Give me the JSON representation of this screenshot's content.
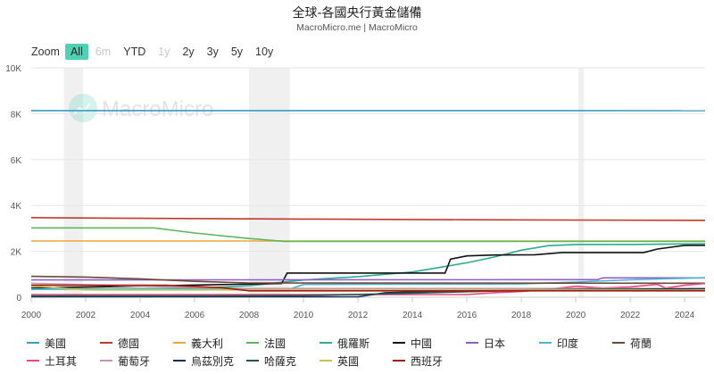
{
  "header": {
    "title": "全球-各國央行黃金儲備",
    "subtitle": "MacroMicro.me | MacroMicro"
  },
  "zoom": {
    "label": "Zoom",
    "buttons": [
      {
        "label": "All",
        "state": "active"
      },
      {
        "label": "6m",
        "state": "disabled"
      },
      {
        "label": "YTD",
        "state": "normal"
      },
      {
        "label": "1y",
        "state": "disabled"
      },
      {
        "label": "2y",
        "state": "normal"
      },
      {
        "label": "3y",
        "state": "normal"
      },
      {
        "label": "5y",
        "state": "normal"
      },
      {
        "label": "10y",
        "state": "normal"
      }
    ]
  },
  "watermark": "MacroMicro",
  "colors": {
    "accent": "#4fd1b5",
    "recession_band": "#f0f0f0",
    "grid": "#e6e6e6"
  },
  "chart_data": {
    "type": "line",
    "title": "全球-各國央行黃金儲備",
    "subtitle": "MacroMicro.me | MacroMicro",
    "xlabel": "",
    "ylabel": "",
    "x_ticks": [
      "2000",
      "2002",
      "2004",
      "2006",
      "2008",
      "2010",
      "2012",
      "2014",
      "2016",
      "2018",
      "2020",
      "2022",
      "2024"
    ],
    "y_ticks": [
      "0",
      "2K",
      "4K",
      "6K",
      "8K",
      "10K"
    ],
    "ylim": [
      0,
      10000
    ],
    "xlim": [
      2000,
      2024.75
    ],
    "grid": true,
    "legend_position": "bottom",
    "shaded_periods": [
      [
        2001.2,
        2001.9
      ],
      [
        2008.0,
        2009.5
      ],
      [
        2020.1,
        2020.3
      ]
    ],
    "series": [
      {
        "name": "美國",
        "color": "#3a9bc1",
        "points": [
          [
            2000,
            8137
          ],
          [
            2024.75,
            8133
          ]
        ]
      },
      {
        "name": "德國",
        "color": "#c0392b",
        "points": [
          [
            2000,
            3469
          ],
          [
            2004,
            3440
          ],
          [
            2010,
            3407
          ],
          [
            2016,
            3378
          ],
          [
            2024.75,
            3352
          ]
        ]
      },
      {
        "name": "義大利",
        "color": "#e9a93a",
        "points": [
          [
            2000,
            2452
          ],
          [
            2024.75,
            2452
          ]
        ]
      },
      {
        "name": "法國",
        "color": "#5cb85c",
        "points": [
          [
            2000,
            3025
          ],
          [
            2004.5,
            3025
          ],
          [
            2006,
            2800
          ],
          [
            2008,
            2560
          ],
          [
            2009.3,
            2435
          ],
          [
            2024.75,
            2437
          ]
        ]
      },
      {
        "name": "俄羅斯",
        "color": "#2bab96",
        "points": [
          [
            2000,
            343
          ],
          [
            2006,
            390
          ],
          [
            2008,
            500
          ],
          [
            2010,
            750
          ],
          [
            2012,
            900
          ],
          [
            2014,
            1100
          ],
          [
            2015,
            1300
          ],
          [
            2016,
            1500
          ],
          [
            2017,
            1750
          ],
          [
            2018,
            2050
          ],
          [
            2019,
            2250
          ],
          [
            2020,
            2300
          ],
          [
            2022,
            2300
          ],
          [
            2024.75,
            2335
          ]
        ]
      },
      {
        "name": "中國",
        "color": "#111111",
        "points": [
          [
            2000,
            395
          ],
          [
            2009.2,
            600
          ],
          [
            2009.4,
            1054
          ],
          [
            2015.2,
            1054
          ],
          [
            2015.4,
            1660
          ],
          [
            2016,
            1800
          ],
          [
            2017,
            1842
          ],
          [
            2018.5,
            1852
          ],
          [
            2019.5,
            1948
          ],
          [
            2022.5,
            1948
          ],
          [
            2023,
            2100
          ],
          [
            2024,
            2260
          ],
          [
            2024.75,
            2264
          ]
        ]
      },
      {
        "name": "日本",
        "color": "#8e5fc7",
        "points": [
          [
            2000,
            754
          ],
          [
            2020.8,
            765
          ],
          [
            2021,
            846
          ],
          [
            2024.75,
            846
          ]
        ]
      },
      {
        "name": "印度",
        "color": "#4ab5d6",
        "points": [
          [
            2000,
            358
          ],
          [
            2009.5,
            358
          ],
          [
            2010,
            558
          ],
          [
            2018,
            580
          ],
          [
            2020,
            660
          ],
          [
            2022,
            760
          ],
          [
            2024.75,
            854
          ]
        ]
      },
      {
        "name": "荷蘭",
        "color": "#6b4a3a",
        "points": [
          [
            2000,
            912
          ],
          [
            2002,
            880
          ],
          [
            2004,
            800
          ],
          [
            2006,
            694
          ],
          [
            2008,
            622
          ],
          [
            2024.75,
            612
          ]
        ]
      },
      {
        "name": "土耳其",
        "color": "#e8457e",
        "points": [
          [
            2000,
            116
          ],
          [
            2016,
            116
          ],
          [
            2017,
            200
          ],
          [
            2018,
            250
          ],
          [
            2019,
            350
          ],
          [
            2020,
            480
          ],
          [
            2021,
            400
          ],
          [
            2022,
            450
          ],
          [
            2023,
            560
          ],
          [
            2023.3,
            400
          ],
          [
            2024,
            520
          ],
          [
            2024.75,
            600
          ]
        ]
      },
      {
        "name": "葡萄牙",
        "color": "#c893b8",
        "points": [
          [
            2000,
            606
          ],
          [
            2006,
            420
          ],
          [
            2008,
            383
          ],
          [
            2024.75,
            383
          ]
        ]
      },
      {
        "name": "烏茲別克",
        "color": "#1a2f5a",
        "points": [
          [
            2000,
            20
          ],
          [
            2012,
            20
          ],
          [
            2013,
            200
          ],
          [
            2016,
            300
          ],
          [
            2020,
            340
          ],
          [
            2024.75,
            370
          ]
        ]
      },
      {
        "name": "哈薩克",
        "color": "#1e5a4a",
        "points": [
          [
            2000,
            56
          ],
          [
            2006,
            60
          ],
          [
            2010,
            70
          ],
          [
            2014,
            180
          ],
          [
            2018,
            300
          ],
          [
            2022,
            340
          ],
          [
            2024.75,
            300
          ]
        ]
      },
      {
        "name": "英國",
        "color": "#c7c24a",
        "points": [
          [
            2000,
            487
          ],
          [
            2002,
            320
          ],
          [
            2024.75,
            310
          ]
        ]
      },
      {
        "name": "西班牙",
        "color": "#a01f0a",
        "points": [
          [
            2000,
            523
          ],
          [
            2005,
            520
          ],
          [
            2007,
            418
          ],
          [
            2008,
            282
          ],
          [
            2024.75,
            282
          ]
        ]
      }
    ]
  },
  "legend": {
    "rows": [
      [
        {
          "name": "美國",
          "color": "#3a9bc1"
        },
        {
          "name": "德國",
          "color": "#c0392b"
        },
        {
          "name": "義大利",
          "color": "#e9a93a"
        },
        {
          "name": "法國",
          "color": "#5cb85c"
        },
        {
          "name": "俄羅斯",
          "color": "#2bab96"
        },
        {
          "name": "中國",
          "color": "#111111"
        },
        {
          "name": "日本",
          "color": "#8e5fc7"
        },
        {
          "name": "印度",
          "color": "#4ab5d6"
        },
        {
          "name": "荷蘭",
          "color": "#6b4a3a"
        }
      ],
      [
        {
          "name": "土耳其",
          "color": "#e8457e"
        },
        {
          "name": "葡萄牙",
          "color": "#c893b8"
        },
        {
          "name": "烏茲別克",
          "color": "#1a2f5a"
        },
        {
          "name": "哈薩克",
          "color": "#1e5a4a"
        },
        {
          "name": "英國",
          "color": "#c7c24a"
        },
        {
          "name": "西班牙",
          "color": "#a01f0a"
        }
      ]
    ]
  }
}
